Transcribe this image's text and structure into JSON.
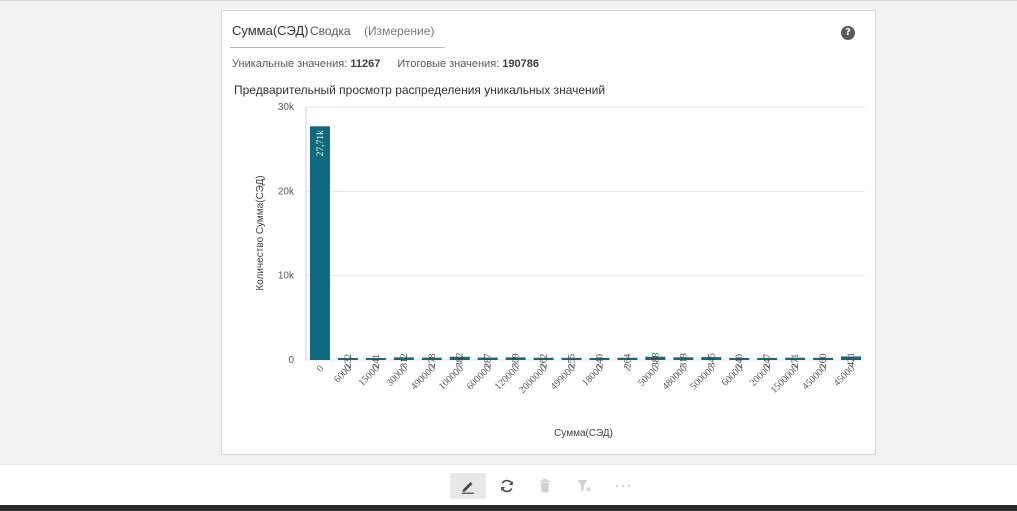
{
  "header": {
    "field_title": "Сумма(СЭД)",
    "tab_summary": "Сводка",
    "tab_dimension": "(Измерение)"
  },
  "stats": {
    "unique_label": "Уникальные значения:",
    "unique_value": "11267",
    "total_label": "Итоговые значения:",
    "total_value": "190786"
  },
  "preview_title": "Предварительный просмотр распределения уникальных значений",
  "colors": {
    "bar": "#0e6a7f",
    "grid": "#e6e6e6",
    "axis_text": "#595959"
  },
  "icons": {
    "help": "question-circle-icon",
    "edit": "pencil-icon",
    "refresh": "refresh-icon",
    "delete": "trash-icon",
    "filter": "filter-icon",
    "more": "more-icon"
  },
  "chart_data": {
    "type": "bar",
    "categories": [
      "0",
      "6000",
      "15000",
      "30000",
      "490000",
      "100000",
      "600000",
      "120000",
      "2000000",
      "499000",
      "18000",
      "1",
      "50000",
      "480000",
      "500000",
      "60000",
      "20000",
      "1500000",
      "450000",
      "45000"
    ],
    "values": [
      27710,
      232,
      241,
      312,
      278,
      382,
      287,
      309,
      262,
      255,
      240,
      264,
      388,
      319,
      345,
      240,
      247,
      271,
      260,
      421
    ],
    "data_labels": [
      "27,71k",
      "232",
      "241",
      "312",
      "278",
      "382",
      "287",
      "309",
      "262",
      "255",
      "240",
      "264",
      "388",
      "319",
      "345",
      "240",
      "247",
      "271",
      "260",
      "421"
    ],
    "xlabel": "Сумма(СЭД)",
    "ylabel": "Количество Сумма(СЭД)",
    "ylim": [
      0,
      30000
    ],
    "yticks": [
      0,
      10000,
      20000,
      30000
    ],
    "ytick_labels": [
      "0",
      "10k",
      "20k",
      "30k"
    ],
    "grid": true
  }
}
